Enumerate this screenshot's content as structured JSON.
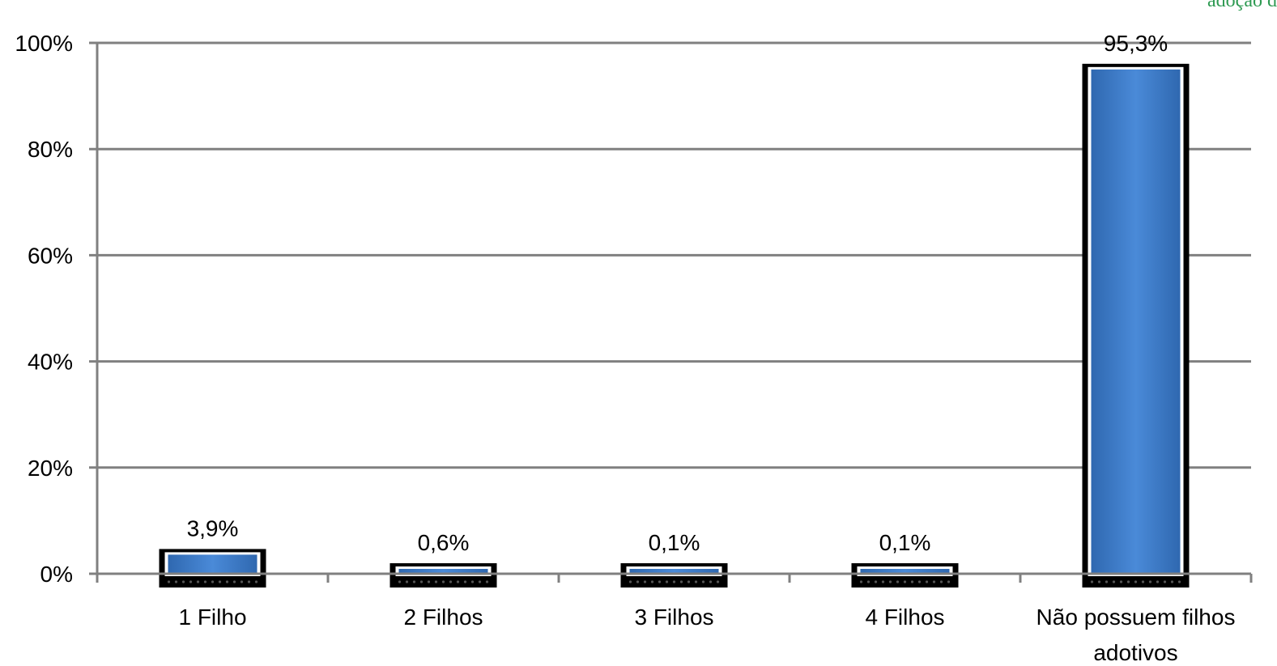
{
  "corner_text": "adoção d",
  "chart_data": {
    "type": "bar",
    "categories": [
      "1 Filho",
      "2 Filhos",
      "3 Filhos",
      "4 Filhos",
      "Não possuem filhos adotivos"
    ],
    "category_lines": [
      [
        "1 Filho"
      ],
      [
        "2 Filhos"
      ],
      [
        "3 Filhos"
      ],
      [
        "4 Filhos"
      ],
      [
        "Não possuem filhos",
        "adotivos"
      ]
    ],
    "values": [
      3.9,
      0.6,
      0.1,
      0.1,
      95.3
    ],
    "data_labels": [
      "3,9%",
      "0,6%",
      "0,1%",
      "0,1%",
      "95,3%"
    ],
    "ylim": [
      0,
      100
    ],
    "yticks": [
      0,
      20,
      40,
      60,
      80,
      100
    ],
    "ytick_labels": [
      "0%",
      "20%",
      "40%",
      "60%",
      "80%",
      "100%"
    ],
    "title": "",
    "xlabel": "",
    "ylabel": "",
    "grid": true,
    "legend": "none",
    "colors": {
      "bar_fill": "#3d7cc9",
      "bar_highlight": "#5e97e0",
      "bar_frame": "#000000",
      "bar_inner_border": "#ffffff",
      "grid": "#808080",
      "axis": "#808080"
    }
  }
}
